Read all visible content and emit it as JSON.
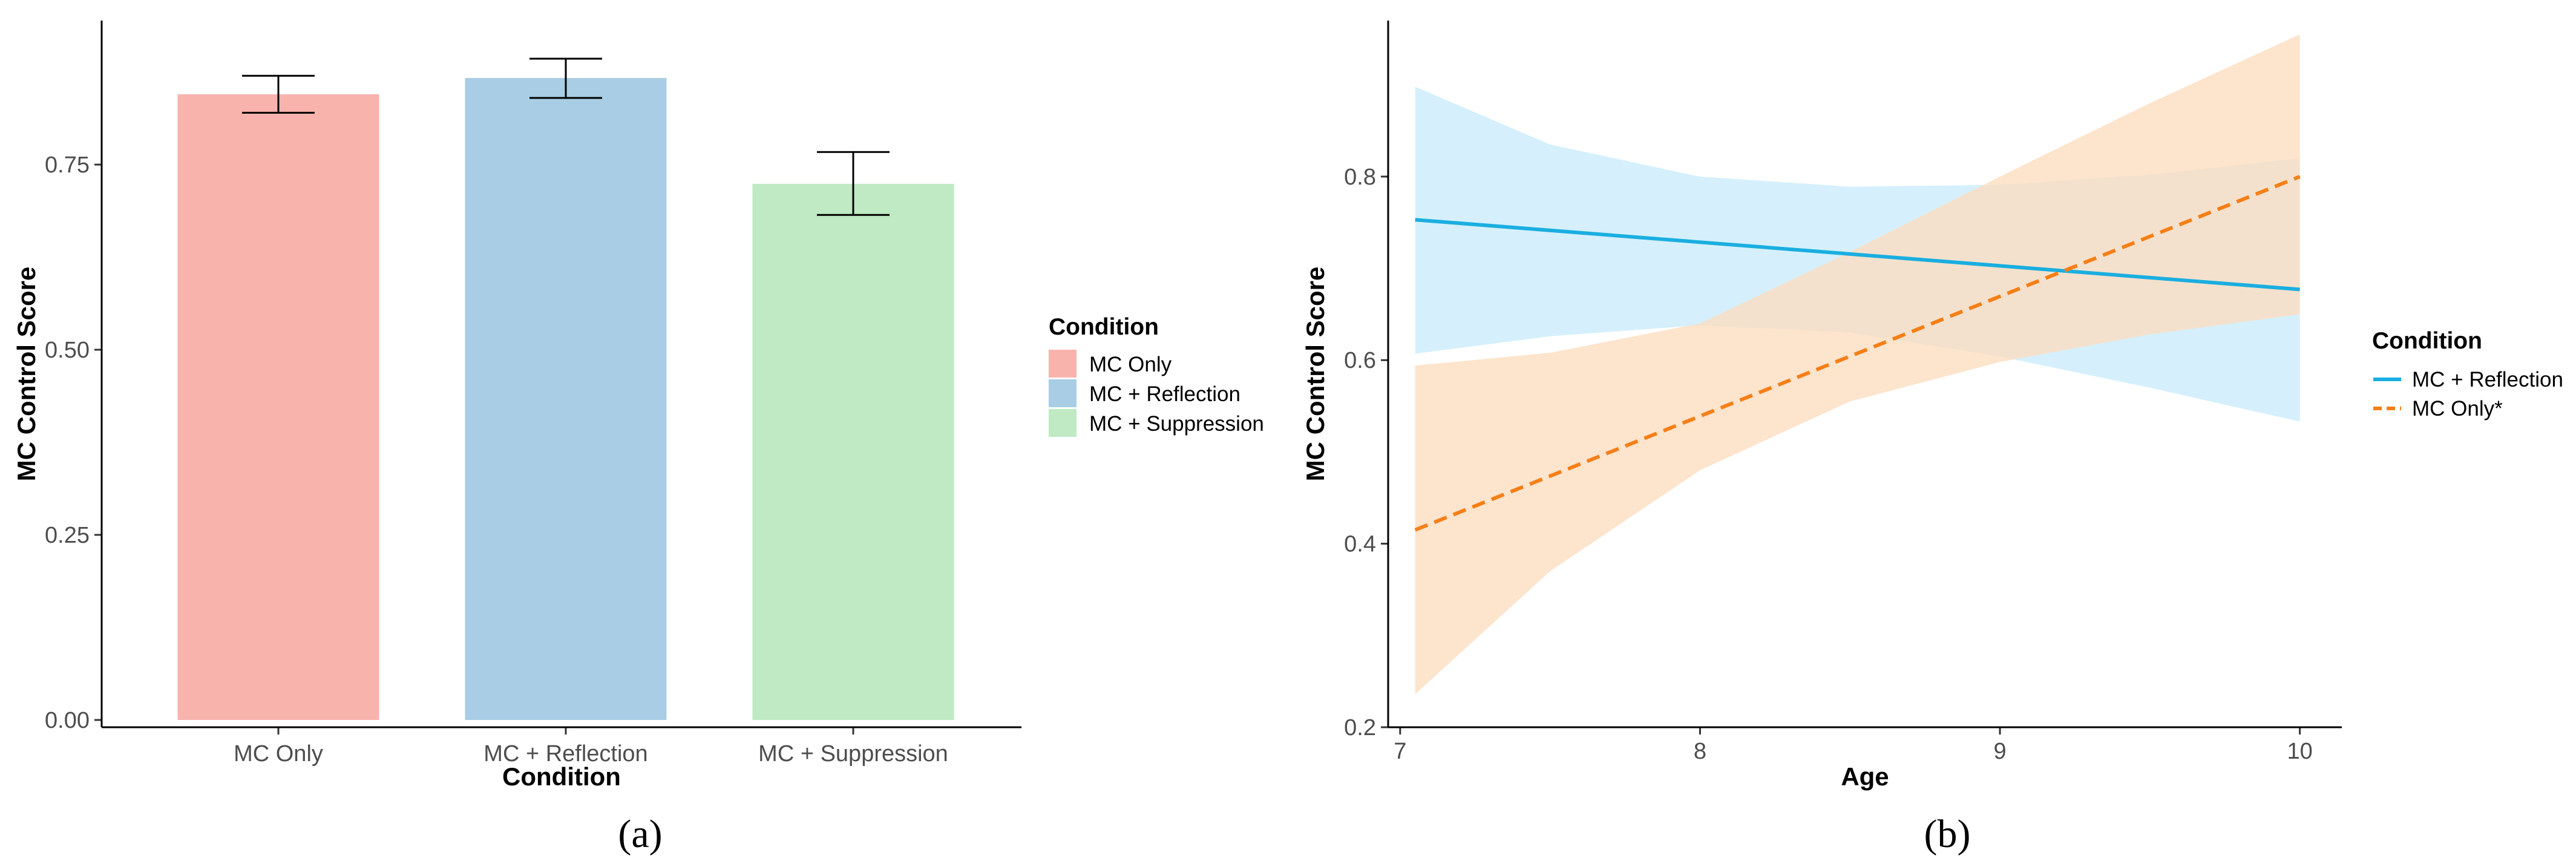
{
  "panels": {
    "a": {
      "label": "(a)"
    },
    "b": {
      "label": "(b)"
    }
  },
  "chart_data": [
    {
      "type": "bar",
      "panel": "(a)",
      "title": "",
      "xlabel": "Condition",
      "ylabel": "MC Control Score",
      "categories": [
        "MC Only",
        "MC + Reflection",
        "MC + Suppression"
      ],
      "values": [
        0.845,
        0.867,
        0.724
      ],
      "error_low": [
        0.82,
        0.84,
        0.682
      ],
      "error_high": [
        0.87,
        0.893,
        0.767
      ],
      "colors": [
        "#f8b3ad",
        "#a8cde4",
        "#bfeac3"
      ],
      "ylim": [
        0.0,
        0.92
      ],
      "yticks": [
        0.0,
        0.25,
        0.5,
        0.75
      ],
      "ytick_labels": [
        "0.00",
        "0.25",
        "0.50",
        "0.75"
      ],
      "legend": {
        "title": "Condition",
        "position": "right",
        "entries": [
          "MC Only",
          "MC + Reflection",
          "MC + Suppression"
        ]
      }
    },
    {
      "type": "line",
      "panel": "(b)",
      "title": "",
      "xlabel": "Age",
      "ylabel": "MC Control Score",
      "xlim": [
        6.96,
        10.14
      ],
      "ylim": [
        0.2,
        0.97
      ],
      "xticks": [
        7,
        8,
        9,
        10
      ],
      "xtick_labels": [
        "7",
        "8",
        "9",
        "10"
      ],
      "yticks": [
        0.2,
        0.4,
        0.6,
        0.8
      ],
      "ytick_labels": [
        "0.2",
        "0.4",
        "0.6",
        "0.8"
      ],
      "series": [
        {
          "name": "MC + Reflection",
          "color": "#1aaee0",
          "band_color": "#c9ecfb",
          "dash": "solid",
          "x": [
            7.05,
            10.0
          ],
          "y": [
            0.753,
            0.677
          ],
          "ci_x": [
            7.05,
            7.5,
            8.0,
            8.5,
            9.0,
            9.5,
            10.0
          ],
          "ci_lower": [
            0.607,
            0.626,
            0.638,
            0.63,
            0.604,
            0.57,
            0.533
          ],
          "ci_upper": [
            0.898,
            0.835,
            0.8,
            0.789,
            0.791,
            0.802,
            0.82
          ]
        },
        {
          "name": "MC Only*",
          "color": "#f57f17",
          "band_color": "#fcdcbf",
          "dash": "dashed",
          "x": [
            7.05,
            10.0
          ],
          "y": [
            0.415,
            0.8
          ],
          "ci_x": [
            7.05,
            7.5,
            8.0,
            8.5,
            9.0,
            9.5,
            10.0
          ],
          "ci_lower": [
            0.236,
            0.37,
            0.48,
            0.555,
            0.598,
            0.628,
            0.65
          ],
          "ci_upper": [
            0.594,
            0.608,
            0.64,
            0.718,
            0.8,
            0.88,
            0.955
          ]
        }
      ],
      "legend": {
        "title": "Condition",
        "position": "right",
        "entries": [
          "MC + Reflection",
          "MC Only*"
        ]
      }
    }
  ]
}
